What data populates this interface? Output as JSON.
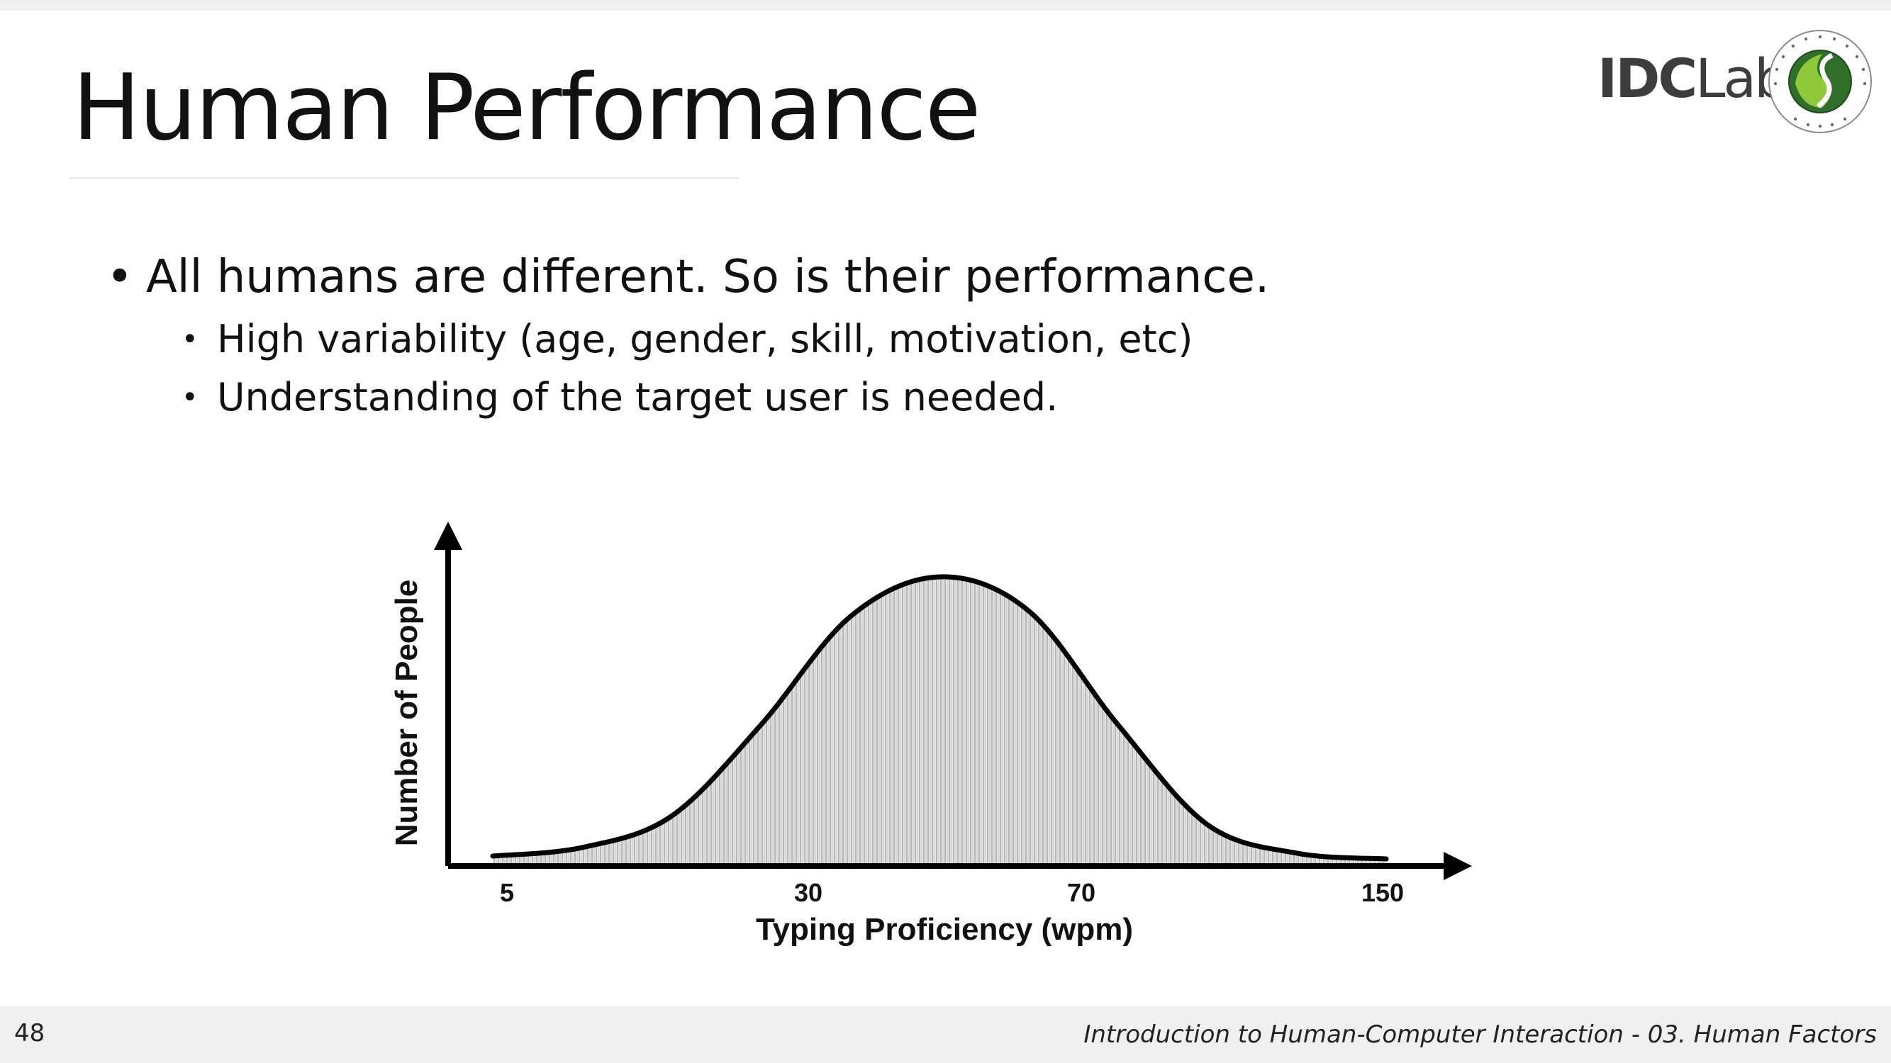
{
  "slide": {
    "title": "Human Performance",
    "logo": {
      "bold_part": "IDC",
      "light_part": "Lab"
    },
    "seal_text": "SUNGKYUNKWAN UNIVERSITY 1398",
    "bullets": {
      "level1": "All humans are different. So is their performance.",
      "level2": [
        "High variability (age, gender, skill, motivation, etc)",
        "Understanding of the target user is needed."
      ]
    },
    "footer": {
      "page_number": "48",
      "course": "Introduction to Human-Computer Interaction - 03. Human Factors"
    }
  },
  "chart_data": {
    "type": "area",
    "shape": "bell-curve (normal distribution), shaded with vertical hatching",
    "xlabel": "Typing Proficiency (wpm)",
    "ylabel": "Number of People",
    "x_tick_labels": [
      "5",
      "30",
      "70",
      "150"
    ],
    "y_tick_labels": [],
    "curve_relative_height": [
      0.02,
      0.05,
      0.16,
      0.48,
      0.86,
      1.0,
      0.88,
      0.48,
      0.13,
      0.03,
      0.01
    ],
    "grid": false,
    "legend": false,
    "colors": {
      "curve": "#000000",
      "fill": "#cfcfcf",
      "axis": "#000000"
    }
  }
}
